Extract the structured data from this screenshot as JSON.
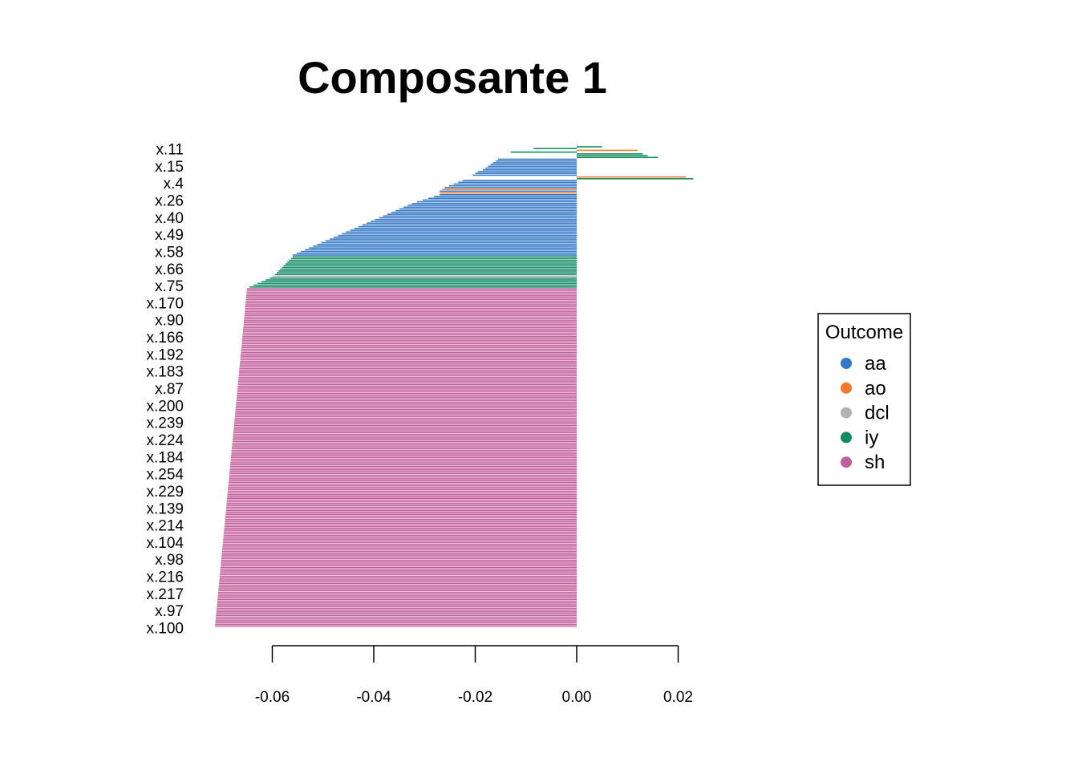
{
  "chart_data": {
    "type": "bar",
    "orientation": "horizontal",
    "title": "Composante 1",
    "xlabel": "",
    "ylabel": "",
    "xlim": [
      -0.065,
      0.023
    ],
    "x_ticks": [
      -0.06,
      -0.04,
      -0.02,
      0.0,
      0.02
    ],
    "x_tick_labels": [
      "-0.06",
      "-0.04",
      "-0.02",
      "0.00",
      "0.02"
    ],
    "y_tick_labels": [
      "x.11",
      "x.15",
      "x.4",
      "x.26",
      "x.40",
      "x.49",
      "x.58",
      "x.66",
      "x.75",
      "x.170",
      "x.90",
      "x.166",
      "x.192",
      "x.183",
      "x.87",
      "x.200",
      "x.239",
      "x.224",
      "x.184",
      "x.254",
      "x.229",
      "x.139",
      "x.214",
      "x.104",
      "x.98",
      "x.216",
      "x.217",
      "x.97",
      "x.100"
    ],
    "grid": false,
    "legend": {
      "title": "Outcome",
      "position": "right",
      "entries": [
        {
          "label": "aa",
          "color": "#3478C5"
        },
        {
          "label": "ao",
          "color": "#F07A2C"
        },
        {
          "label": "dcl",
          "color": "#B3B3B3"
        },
        {
          "label": "iy",
          "color": "#128A63"
        },
        {
          "label": "sh",
          "color": "#C25E9B"
        }
      ]
    },
    "segments": [
      {
        "outcome": "iy",
        "from": 0.0,
        "to": -0.0025,
        "count": 1
      },
      {
        "outcome": "iy",
        "from": 0.005,
        "to": 0.005,
        "count": 1
      },
      {
        "outcome": "iy",
        "from": -0.0085,
        "to": -0.0085,
        "count": 1
      },
      {
        "outcome": "ao",
        "from": 0.012,
        "to": 0.012,
        "count": 1
      },
      {
        "outcome": "iy",
        "from": -0.013,
        "to": 0.013,
        "count": 2
      },
      {
        "outcome": "iy",
        "from": 0.014,
        "to": 0.014,
        "count": 1
      },
      {
        "outcome": "iy",
        "from": 0.016,
        "to": 0.016,
        "count": 1
      },
      {
        "outcome": "aa",
        "from": -0.0155,
        "to": -0.0185,
        "count": 7
      },
      {
        "outcome": "aa",
        "from": -0.0195,
        "to": -0.0205,
        "count": 3
      },
      {
        "outcome": "ao",
        "from": 0.0215,
        "to": 0.0215,
        "count": 1
      },
      {
        "outcome": "iy",
        "from": 0.023,
        "to": 0.023,
        "count": 1
      },
      {
        "outcome": "aa",
        "from": -0.0225,
        "to": -0.026,
        "count": 5
      },
      {
        "outcome": "ao",
        "from": -0.0265,
        "to": -0.0265,
        "count": 1
      },
      {
        "outcome": "aa",
        "from": -0.027,
        "to": -0.027,
        "count": 1
      },
      {
        "outcome": "ao",
        "from": -0.027,
        "to": -0.027,
        "count": 1
      },
      {
        "outcome": "aa",
        "from": -0.027,
        "to": -0.0315,
        "count": 5
      },
      {
        "outcome": "aa",
        "from": -0.0325,
        "to": -0.056,
        "count": 30
      },
      {
        "outcome": "iy",
        "from": -0.056,
        "to": -0.0595,
        "count": 11
      },
      {
        "outcome": "dcl",
        "from": -0.06,
        "to": -0.06,
        "count": 1
      },
      {
        "outcome": "iy",
        "from": -0.0605,
        "to": -0.0645,
        "count": 6
      },
      {
        "outcome": "sh",
        "from": -0.065,
        "to": -0.0713,
        "count": 191
      }
    ]
  }
}
